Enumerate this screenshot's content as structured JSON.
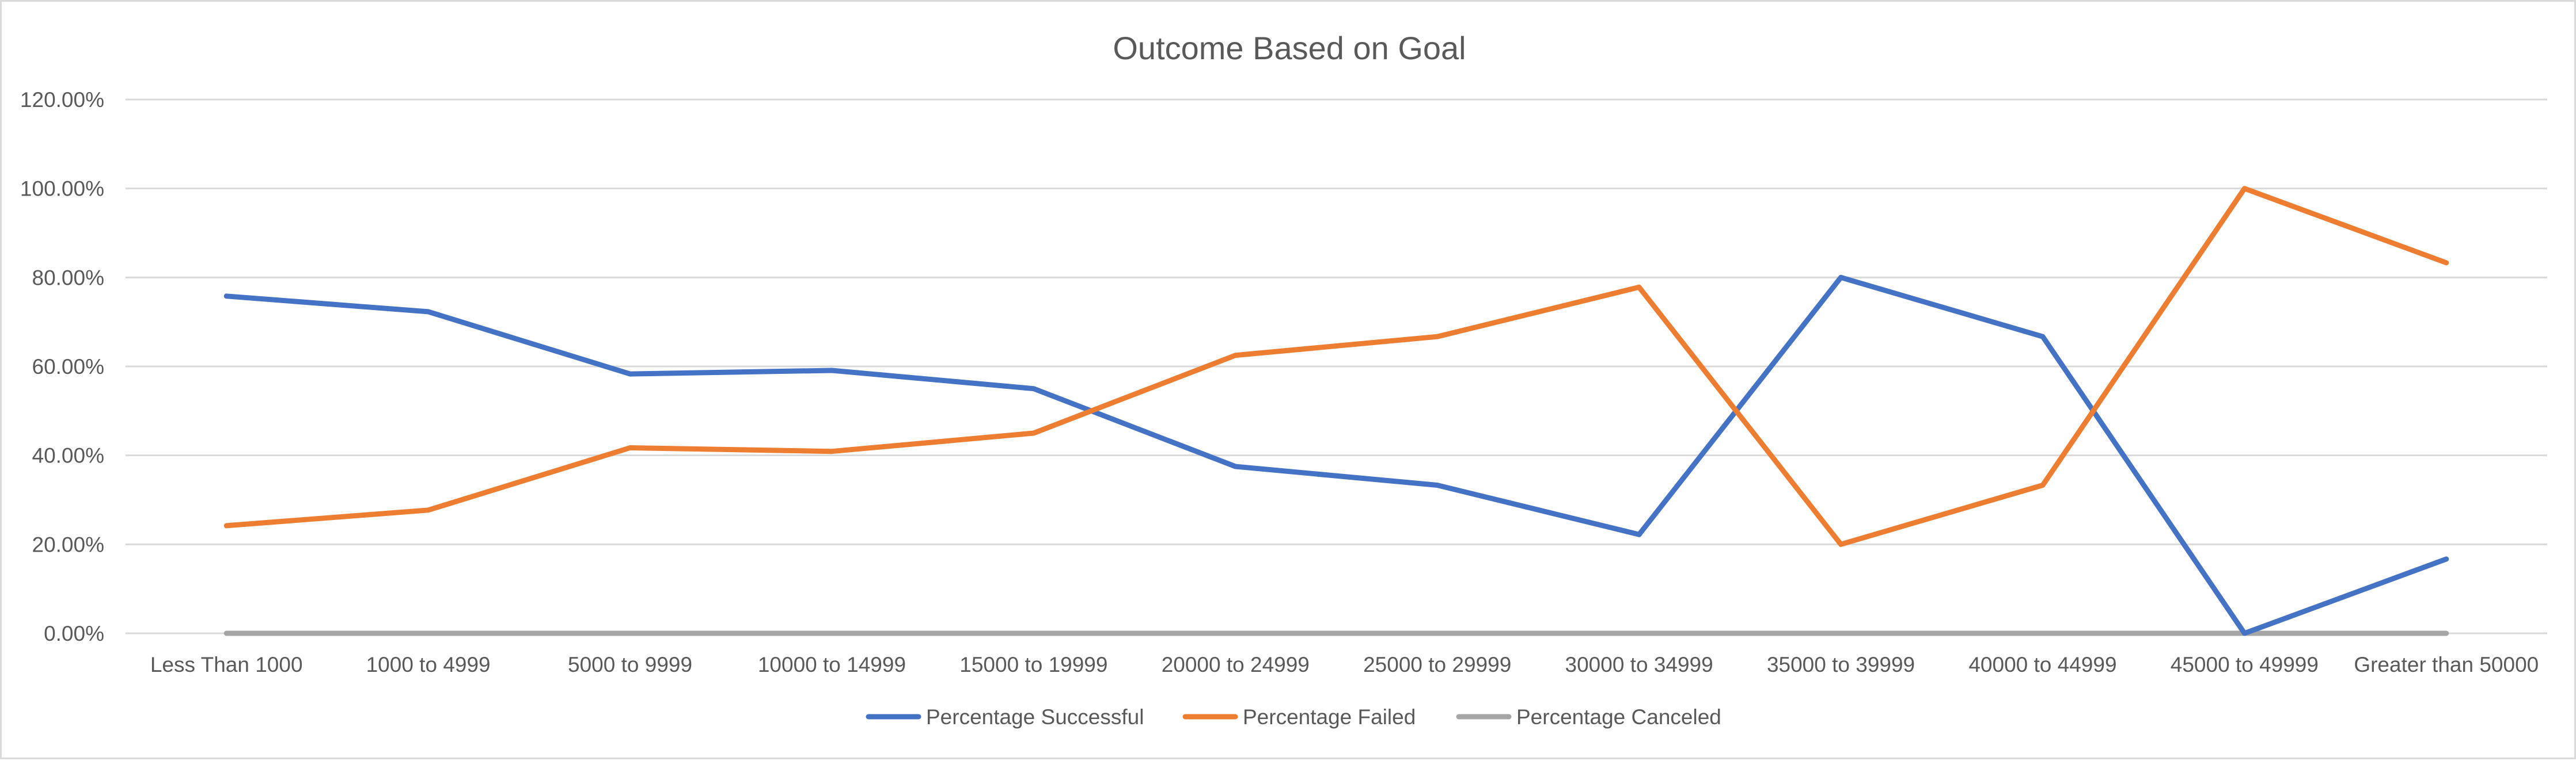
{
  "chart_data": {
    "type": "line",
    "title": "Outcome Based on Goal",
    "categories": [
      "Less Than 1000",
      "1000 to 4999",
      "5000 to 9999",
      "10000 to 14999",
      "15000 to 19999",
      "20000 to 24999",
      "25000 to 29999",
      "30000 to 34999",
      "35000 to 39999",
      "40000 to 44999",
      "45000 to 49999",
      "Greater than 50000"
    ],
    "series": [
      {
        "name": "Percentage Successful",
        "color": "#4472c4",
        "values": [
          0.758,
          0.723,
          0.583,
          0.591,
          0.55,
          0.375,
          0.333,
          0.222,
          0.8,
          0.667,
          0.0,
          0.167
        ]
      },
      {
        "name": "Percentage Failed",
        "color": "#ed7d31",
        "values": [
          0.242,
          0.277,
          0.417,
          0.409,
          0.45,
          0.625,
          0.667,
          0.778,
          0.2,
          0.333,
          1.0,
          0.833
        ]
      },
      {
        "name": "Percentage Canceled",
        "color": "#a5a5a5",
        "values": [
          0,
          0,
          0,
          0,
          0,
          0,
          0,
          0,
          0,
          0,
          0,
          0
        ]
      }
    ],
    "ylim": [
      0,
      1.2
    ],
    "yticks": [
      "0.00%",
      "20.00%",
      "40.00%",
      "60.00%",
      "80.00%",
      "100.00%",
      "120.00%"
    ],
    "ytick_values": [
      0,
      0.2,
      0.4,
      0.6,
      0.8,
      1.0,
      1.2
    ],
    "xlabel": "",
    "ylabel": "",
    "grid": true,
    "legend_position": "bottom",
    "gridline_color": "#d9d9d9"
  }
}
